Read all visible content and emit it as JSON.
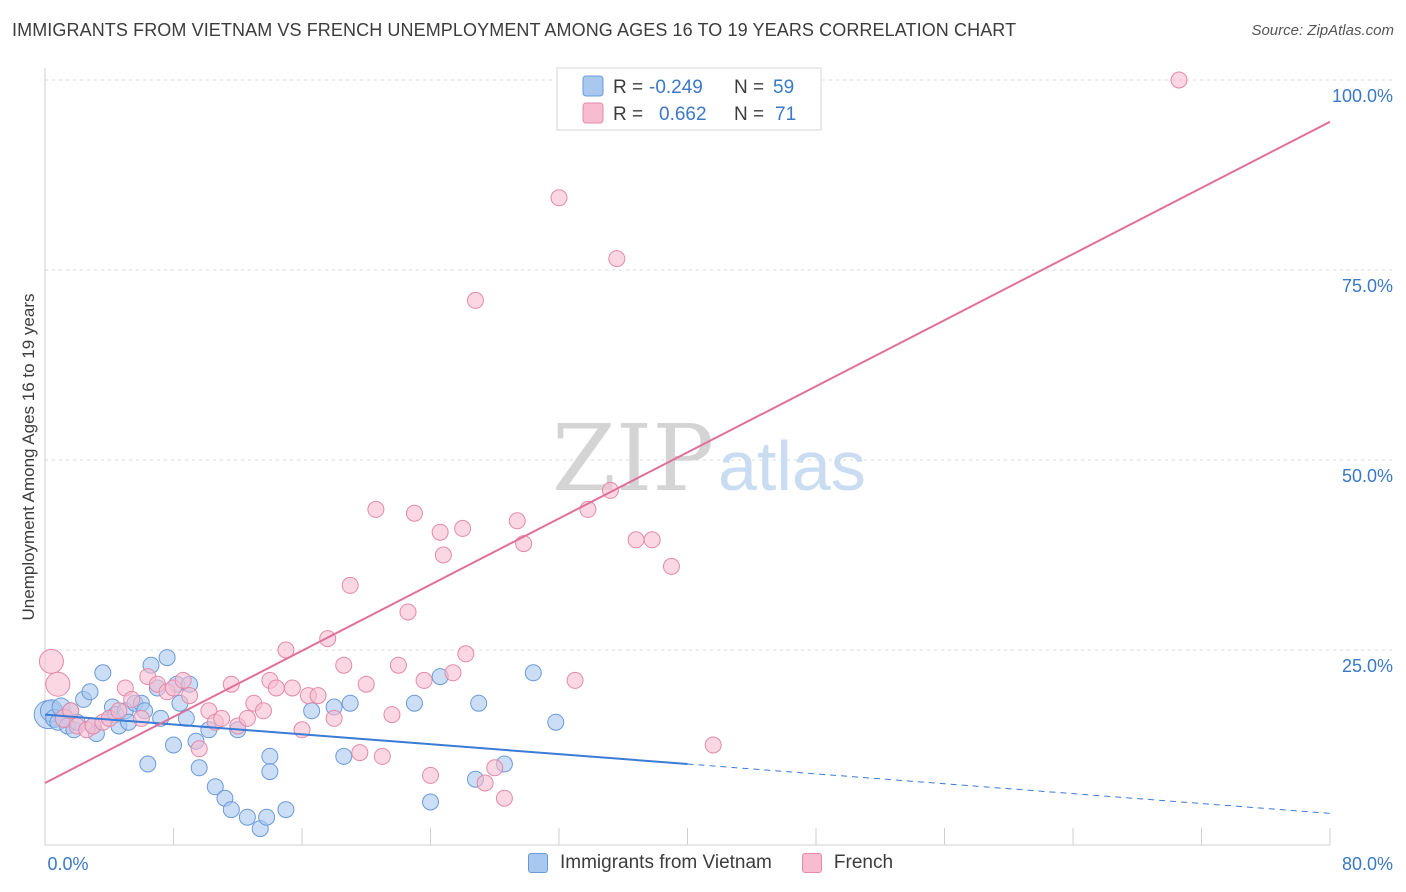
{
  "title": "IMMIGRANTS FROM VIETNAM VS FRENCH UNEMPLOYMENT AMONG AGES 16 TO 19 YEARS CORRELATION CHART",
  "source": "Source: ZipAtlas.com",
  "watermark": {
    "zip": "ZIP",
    "atlas": "atlas"
  },
  "colors": {
    "blue_fill": "#a8c8f0",
    "blue_stroke": "#6c9ad8",
    "blue_line": "#3a7bd5",
    "pink_fill": "#f7bcd0",
    "pink_stroke": "#e48aa8",
    "pink_line": "#e0709a",
    "axis_text": "#3a78c8",
    "grid": "#d8d8d8"
  },
  "legend_box": {
    "rows": [
      {
        "r_label": "R =",
        "r_value": "-0.249",
        "n_label": "N =",
        "n_value": "59",
        "series": "blue"
      },
      {
        "r_label": "R =",
        "r_value": "0.662",
        "n_label": "N =",
        "n_value": "71",
        "series": "pink"
      }
    ]
  },
  "chart_data": {
    "type": "scatter",
    "xlabel": "",
    "ylabel": "Unemployment Among Ages 16 to 19 years",
    "xlim": [
      0,
      80
    ],
    "ylim": [
      0,
      100
    ],
    "x_tick_labels": [
      {
        "value": 0,
        "label": "0.0%"
      },
      {
        "value": 80,
        "label": "80.0%"
      }
    ],
    "x_minor_ticks": [
      8,
      16,
      24,
      32,
      40,
      48,
      56,
      64,
      72
    ],
    "y_tick_labels": [
      {
        "value": 25,
        "label": "25.0%"
      },
      {
        "value": 50,
        "label": "50.0%"
      },
      {
        "value": 75,
        "label": "75.0%"
      },
      {
        "value": 100,
        "label": "100.0%"
      }
    ],
    "grid": true,
    "series": [
      {
        "name": "Immigrants from Vietnam",
        "key": "blue",
        "trend": {
          "x0": 0,
          "y0": 16.5,
          "x1": 40,
          "y1": 10.0,
          "dash_to_x": 80,
          "dash_to_y": 3.5
        },
        "points": [
          [
            0.2,
            16.5,
            14
          ],
          [
            0.4,
            17.0,
            11
          ],
          [
            0.6,
            16.0,
            9
          ],
          [
            0.8,
            15.5,
            8
          ],
          [
            1.0,
            17.5,
            9
          ],
          [
            1.2,
            16.0,
            9
          ],
          [
            1.4,
            15.0,
            8
          ],
          [
            1.6,
            17.0,
            8
          ],
          [
            1.8,
            14.5,
            8
          ],
          [
            2.0,
            15.5,
            8
          ],
          [
            2.4,
            18.5,
            8
          ],
          [
            2.8,
            19.5,
            8
          ],
          [
            3.0,
            15.0,
            8
          ],
          [
            3.2,
            14.0,
            8
          ],
          [
            3.6,
            22.0,
            8
          ],
          [
            4.0,
            16.0,
            8
          ],
          [
            4.2,
            17.5,
            8
          ],
          [
            4.4,
            16.5,
            8
          ],
          [
            4.6,
            15.0,
            8
          ],
          [
            5.0,
            17.0,
            8
          ],
          [
            5.2,
            15.5,
            8
          ],
          [
            5.6,
            18.0,
            8
          ],
          [
            6.0,
            18.0,
            8
          ],
          [
            6.2,
            17.0,
            8
          ],
          [
            6.4,
            10.0,
            8
          ],
          [
            6.6,
            23.0,
            8
          ],
          [
            7.0,
            20.0,
            8
          ],
          [
            7.2,
            16.0,
            8
          ],
          [
            7.6,
            24.0,
            8
          ],
          [
            8.0,
            12.5,
            8
          ],
          [
            8.2,
            20.5,
            8
          ],
          [
            8.4,
            18.0,
            8
          ],
          [
            8.8,
            16.0,
            8
          ],
          [
            9.0,
            20.5,
            8
          ],
          [
            9.4,
            13.0,
            8
          ],
          [
            9.6,
            9.5,
            8
          ],
          [
            10.2,
            14.5,
            8
          ],
          [
            10.6,
            7.0,
            8
          ],
          [
            11.2,
            5.5,
            8
          ],
          [
            11.6,
            4.0,
            8
          ],
          [
            12.0,
            14.5,
            8
          ],
          [
            12.6,
            3.0,
            8
          ],
          [
            13.4,
            1.5,
            8
          ],
          [
            13.8,
            3.0,
            8
          ],
          [
            14.0,
            11.0,
            8
          ],
          [
            14.0,
            9.0,
            8
          ],
          [
            15.0,
            4.0,
            8
          ],
          [
            16.6,
            17.0,
            8
          ],
          [
            18.0,
            17.5,
            8
          ],
          [
            18.6,
            11.0,
            8
          ],
          [
            19.0,
            18.0,
            8
          ],
          [
            23.0,
            18.0,
            8
          ],
          [
            24.0,
            5.0,
            8
          ],
          [
            24.6,
            21.5,
            8
          ],
          [
            26.8,
            8.0,
            8
          ],
          [
            28.6,
            10.0,
            8
          ],
          [
            30.4,
            22.0,
            8
          ],
          [
            31.8,
            15.5,
            8
          ],
          [
            27.0,
            18.0,
            8
          ]
        ]
      },
      {
        "name": "French",
        "key": "pink",
        "trend": {
          "x0": 0,
          "y0": 7.5,
          "x1": 80,
          "y1": 94.5
        },
        "points": [
          [
            0.4,
            23.5,
            12
          ],
          [
            0.8,
            20.5,
            12
          ],
          [
            1.2,
            16.0,
            9
          ],
          [
            1.6,
            17.0,
            8
          ],
          [
            2.0,
            15.0,
            8
          ],
          [
            2.6,
            14.5,
            8
          ],
          [
            3.0,
            15.0,
            8
          ],
          [
            3.6,
            15.5,
            8
          ],
          [
            4.0,
            16.0,
            8
          ],
          [
            4.6,
            17.0,
            8
          ],
          [
            5.0,
            20.0,
            8
          ],
          [
            5.4,
            18.5,
            8
          ],
          [
            6.0,
            16.0,
            8
          ],
          [
            6.4,
            21.5,
            8
          ],
          [
            7.0,
            20.5,
            8
          ],
          [
            7.6,
            19.5,
            8
          ],
          [
            8.0,
            20.0,
            8
          ],
          [
            8.6,
            21.0,
            8
          ],
          [
            9.0,
            19.0,
            8
          ],
          [
            9.6,
            12.0,
            8
          ],
          [
            10.2,
            17.0,
            8
          ],
          [
            10.6,
            15.5,
            8
          ],
          [
            11.0,
            16.0,
            8
          ],
          [
            11.6,
            20.5,
            8
          ],
          [
            12.0,
            15.0,
            8
          ],
          [
            12.6,
            16.0,
            8
          ],
          [
            13.0,
            18.0,
            8
          ],
          [
            13.6,
            17.0,
            8
          ],
          [
            14.0,
            21.0,
            8
          ],
          [
            14.4,
            20.0,
            8
          ],
          [
            15.0,
            25.0,
            8
          ],
          [
            15.4,
            20.0,
            8
          ],
          [
            16.0,
            14.5,
            8
          ],
          [
            16.4,
            19.0,
            8
          ],
          [
            17.0,
            19.0,
            8
          ],
          [
            17.6,
            26.5,
            8
          ],
          [
            18.0,
            16.0,
            8
          ],
          [
            18.6,
            23.0,
            8
          ],
          [
            19.0,
            33.5,
            8
          ],
          [
            19.6,
            11.5,
            8
          ],
          [
            20.0,
            20.5,
            8
          ],
          [
            20.6,
            43.5,
            8
          ],
          [
            21.0,
            11.0,
            8
          ],
          [
            21.6,
            16.5,
            8
          ],
          [
            22.0,
            23.0,
            8
          ],
          [
            22.6,
            30.0,
            8
          ],
          [
            23.0,
            43.0,
            8
          ],
          [
            23.6,
            21.0,
            8
          ],
          [
            24.0,
            8.5,
            8
          ],
          [
            24.6,
            40.5,
            8
          ],
          [
            24.8,
            37.5,
            8
          ],
          [
            25.4,
            22.0,
            8
          ],
          [
            26.0,
            41.0,
            8
          ],
          [
            26.2,
            24.5,
            8
          ],
          [
            26.8,
            71.0,
            8
          ],
          [
            27.4,
            7.5,
            8
          ],
          [
            28.0,
            9.5,
            8
          ],
          [
            28.6,
            5.5,
            8
          ],
          [
            29.4,
            42.0,
            8
          ],
          [
            29.8,
            39.0,
            8
          ],
          [
            32.0,
            84.5,
            8
          ],
          [
            33.0,
            21.0,
            8
          ],
          [
            33.8,
            43.5,
            8
          ],
          [
            35.2,
            46.0,
            8
          ],
          [
            35.6,
            76.5,
            8
          ],
          [
            36.8,
            39.5,
            8
          ],
          [
            37.8,
            39.5,
            8
          ],
          [
            39.0,
            36.0,
            8
          ],
          [
            41.0,
            100.0,
            8
          ],
          [
            41.6,
            12.5,
            8
          ],
          [
            70.6,
            100.0,
            8
          ]
        ]
      }
    ]
  }
}
